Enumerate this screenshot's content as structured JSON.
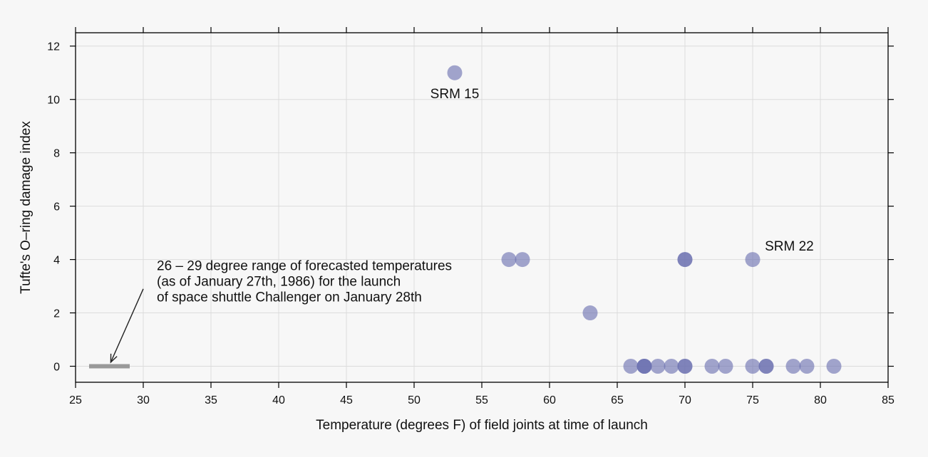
{
  "chart_data": {
    "type": "scatter",
    "xlabel": "Temperature (degrees F) of field joints at time of launch",
    "ylabel": "Tufte's O–ring damage index",
    "xlim": [
      25,
      85
    ],
    "ylim": [
      -0.6,
      12.5
    ],
    "xticks": [
      25,
      30,
      35,
      40,
      45,
      50,
      55,
      60,
      65,
      70,
      75,
      80,
      85
    ],
    "yticks": [
      0,
      2,
      4,
      6,
      8,
      10,
      12
    ],
    "grid": true,
    "point_color": "#6b6fb0",
    "points": [
      {
        "x": 53,
        "y": 11
      },
      {
        "x": 57,
        "y": 4
      },
      {
        "x": 58,
        "y": 4
      },
      {
        "x": 63,
        "y": 2
      },
      {
        "x": 66,
        "y": 0
      },
      {
        "x": 67,
        "y": 0
      },
      {
        "x": 67,
        "y": 0
      },
      {
        "x": 67,
        "y": 0
      },
      {
        "x": 68,
        "y": 0
      },
      {
        "x": 69,
        "y": 0
      },
      {
        "x": 70,
        "y": 0
      },
      {
        "x": 70,
        "y": 0
      },
      {
        "x": 70,
        "y": 4
      },
      {
        "x": 70,
        "y": 4
      },
      {
        "x": 72,
        "y": 0
      },
      {
        "x": 73,
        "y": 0
      },
      {
        "x": 75,
        "y": 0
      },
      {
        "x": 75,
        "y": 4
      },
      {
        "x": 76,
        "y": 0
      },
      {
        "x": 76,
        "y": 0
      },
      {
        "x": 78,
        "y": 0
      },
      {
        "x": 79,
        "y": 0
      },
      {
        "x": 81,
        "y": 0
      }
    ],
    "forecast_range": {
      "x_start": 26,
      "x_end": 29,
      "y": 0,
      "color": "#999999"
    },
    "annotations": [
      {
        "text": "SRM 15",
        "x": 53,
        "y": 10.2,
        "anchor": "middle"
      },
      {
        "text": "SRM 22",
        "x": 75.9,
        "y": 4.5,
        "anchor": "start"
      }
    ],
    "forecast_note": {
      "lines": [
        "26 – 29 degree range of forecasted temperatures",
        "(as of January 27th, 1986) for the launch",
        "of space shuttle Challenger on January 28th"
      ],
      "x": 31,
      "y": 3.55,
      "arrow_from": {
        "x": 30,
        "y": 2.9
      },
      "arrow_to": {
        "x": 27.6,
        "y": 0.15
      }
    }
  }
}
